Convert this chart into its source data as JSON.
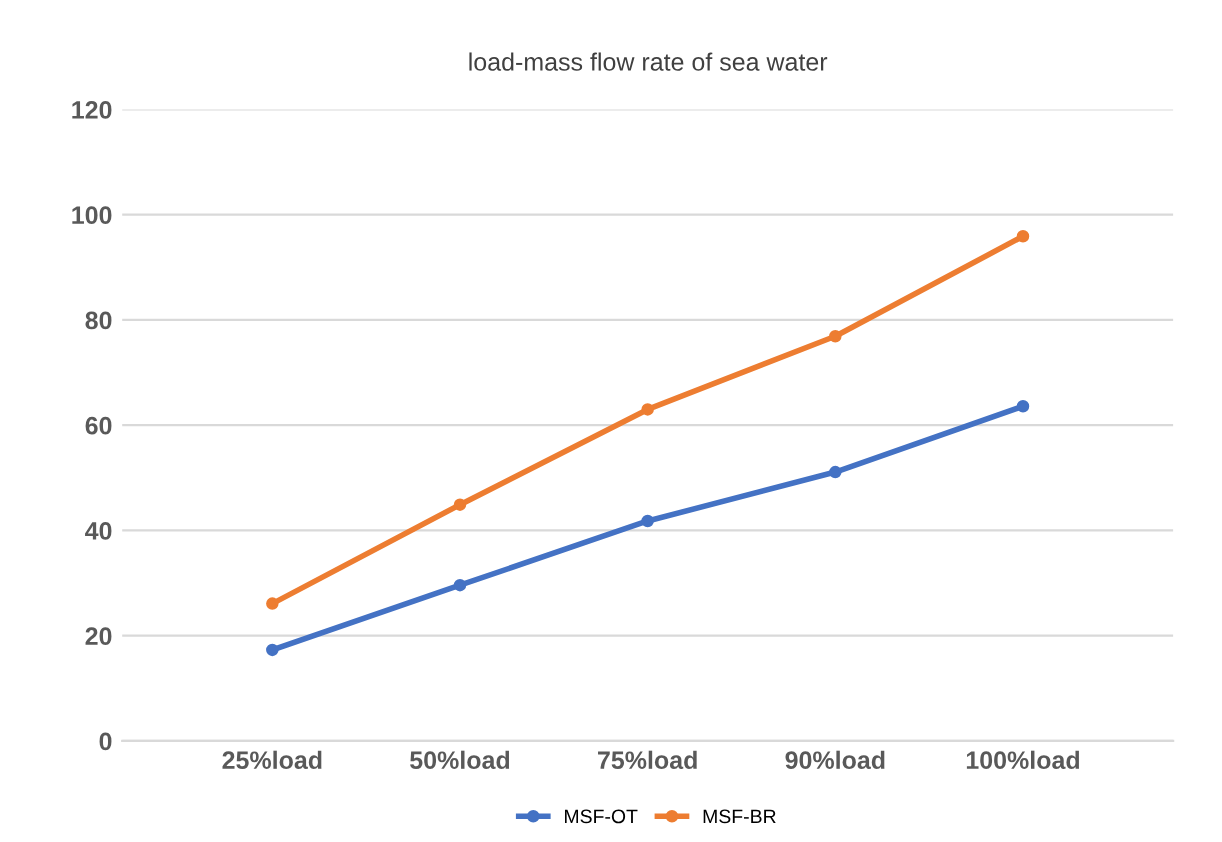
{
  "chart_data": {
    "type": "line",
    "title": "load-mass flow rate of sea water",
    "categories": [
      "25%load",
      "50%load",
      "75%load",
      "90%load",
      "100%load"
    ],
    "series": [
      {
        "name": "MSF-OT",
        "color": "#4472c4",
        "values": [
          17.3,
          29.6,
          41.8,
          51.1,
          63.6
        ]
      },
      {
        "name": "MSF-BR",
        "color": "#ed7d31",
        "values": [
          26.1,
          44.9,
          63.0,
          76.9,
          95.9
        ]
      }
    ],
    "ylim": [
      0,
      120
    ],
    "yticks": [
      0,
      20,
      40,
      60,
      80,
      100,
      120
    ],
    "grid": "y",
    "legend": "bottom",
    "marker": "circle",
    "line_style": "solid"
  }
}
